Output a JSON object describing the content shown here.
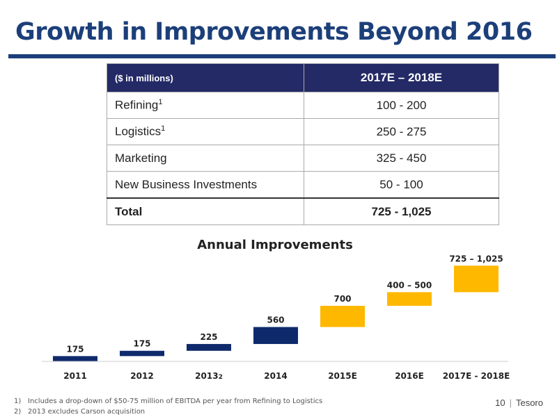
{
  "slide": {
    "title": "Growth in Improvements Beyond 2016",
    "page_number": "10",
    "separator": "|",
    "company": "Tesoro"
  },
  "table": {
    "header": [
      "($ in millions)",
      "2017E – 2018E"
    ],
    "rows": [
      {
        "label": "Refining",
        "sup": "1",
        "value": "100 - 200"
      },
      {
        "label": "Logistics",
        "sup": "1",
        "value": "250 - 275"
      },
      {
        "label": "Marketing",
        "sup": "",
        "value": "325 - 450"
      },
      {
        "label": "New Business Investments",
        "sup": "",
        "value": "50 - 100"
      }
    ],
    "total": {
      "label": "Total",
      "value": "725 - 1,025"
    }
  },
  "footnotes": [
    {
      "num": "1)",
      "text": "Includes a drop-down of $50-75 million of EBITDA per year from Refining to Logistics"
    },
    {
      "num": "2)",
      "text": "2013 excludes Carson acquisition"
    }
  ],
  "chart_data": {
    "type": "bar",
    "subtype": "waterfall",
    "title": "Annual Improvements",
    "categories": [
      "2011",
      "2012",
      "2013",
      "2014",
      "2015E",
      "2016E",
      "2017E - 2018E"
    ],
    "category_superscripts": [
      "",
      "",
      "2",
      "",
      "",
      "",
      ""
    ],
    "series": [
      {
        "values": [
          {
            "label": "175",
            "low": 0,
            "high": 175
          },
          {
            "label": "175",
            "low": 175,
            "high": 350
          },
          {
            "label": "225",
            "low": 350,
            "high": 575
          },
          {
            "label": "560",
            "low": 575,
            "high": 1135
          },
          {
            "label": "700",
            "low": 1135,
            "high": 1835
          },
          {
            "label": "400 – 500",
            "low": 1835,
            "high": 2285
          },
          {
            "label": "725 – 1,025",
            "low": 2285,
            "high": 3160
          }
        ]
      }
    ],
    "colors": [
      "#0f2a6b",
      "#0f2a6b",
      "#0f2a6b",
      "#0f2a6b",
      "#ffb800",
      "#ffb800",
      "#ffb800"
    ],
    "ylim": [
      0,
      3900
    ],
    "grid": false,
    "legend": false
  }
}
